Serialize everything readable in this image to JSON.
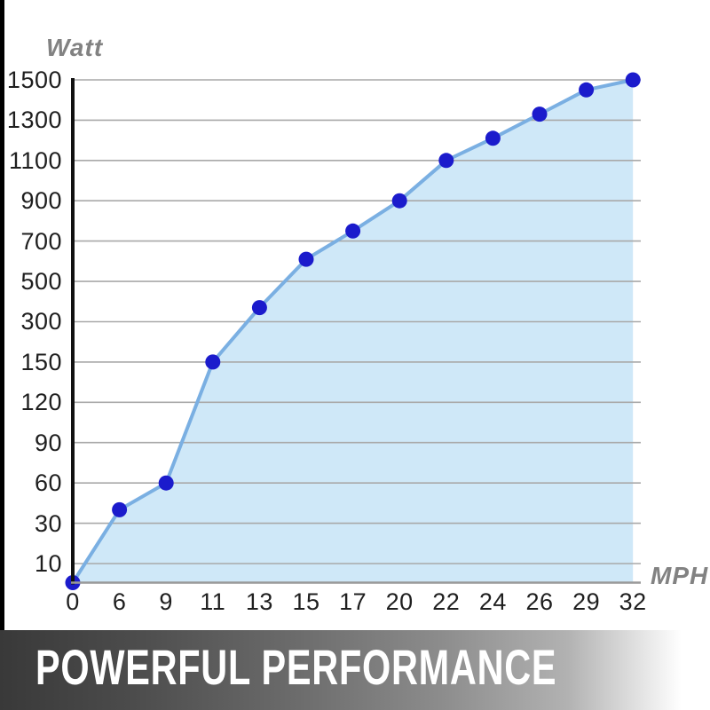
{
  "chart": {
    "y_axis_title": "Watt",
    "x_axis_title": "MPH"
  },
  "chart_data": {
    "type": "area",
    "title": "",
    "xlabel": "MPH",
    "ylabel": "Watt",
    "x_categories": [
      0,
      6,
      9,
      11,
      13,
      15,
      17,
      20,
      22,
      24,
      26,
      29,
      32
    ],
    "y_ticks": [
      10,
      30,
      60,
      90,
      120,
      150,
      300,
      500,
      700,
      900,
      1100,
      1300,
      1500
    ],
    "values": [
      0,
      40,
      60,
      150,
      370,
      610,
      750,
      900,
      1100,
      1210,
      1330,
      1450,
      1500
    ],
    "grid": true,
    "y_scale": "non-linear, tick labels equally spaced",
    "legend": "none",
    "colors": {
      "line": "#7aafe2",
      "fill": "#cfe8f8",
      "point": "#1b1bcc",
      "grid": "#a9a9a9",
      "y_axis": "#111111",
      "x_axis": "#999999",
      "tick_text": "#1f1f1f",
      "axis_title_text": "#828282"
    }
  },
  "banner": {
    "label": "POWERFUL PERFORMANCE",
    "text_color": "#ffffff",
    "gradient_left": "#3a3a3a",
    "gradient_right": "#ffffff"
  },
  "left_bar": {
    "color": "#000000"
  }
}
